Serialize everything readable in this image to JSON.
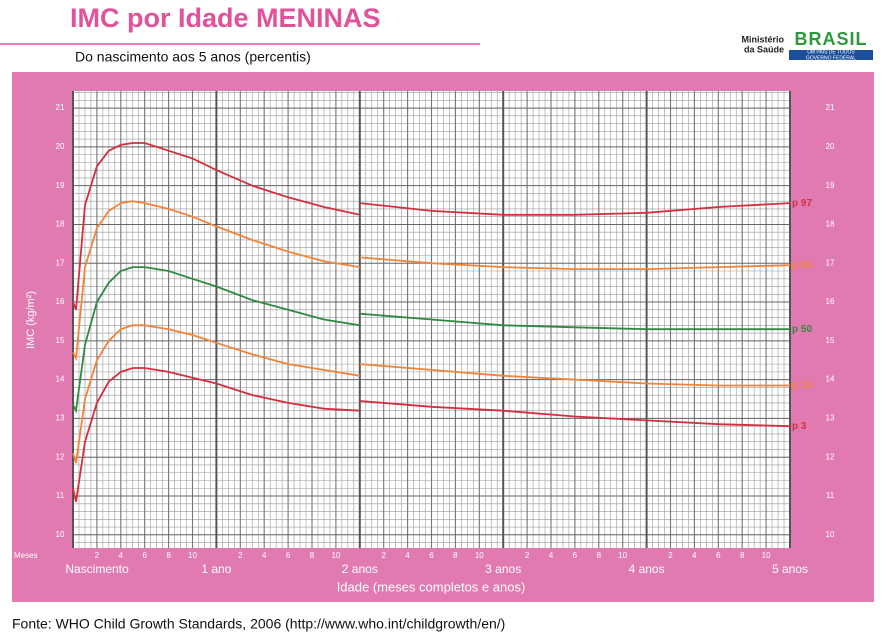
{
  "chart_data": {
    "type": "line",
    "title": "IMC por Idade MENINAS",
    "subtitle": "Do nascimento aos 5 anos (percentis)",
    "logo": {
      "line1": "Ministério",
      "line2": "da Saúde",
      "brand": "BRASIL",
      "tagline1": "UM PAÍS DE TODOS",
      "tagline2": "GOVERNO FEDERAL"
    },
    "x_label": "Idade (meses completos e anos)",
    "y_label": "IMC (kg/m²)",
    "x_unit_label": "Meses",
    "source": "Fonte: WHO Child Growth Standards, 2006 (http://www.who.int/childgrowth/en/)",
    "x": [
      0,
      0.25,
      1,
      2,
      3,
      4,
      5,
      6,
      8,
      10,
      12,
      15,
      18,
      21,
      24,
      24,
      24,
      30,
      36,
      42,
      48,
      54,
      60
    ],
    "series": [
      {
        "name": "p 97",
        "color": "#d2303e",
        "values": [
          16.0,
          15.8,
          18.5,
          19.5,
          19.9,
          20.05,
          20.1,
          20.1,
          19.9,
          19.7,
          19.4,
          19.0,
          18.7,
          18.45,
          18.25,
          null,
          18.55,
          18.35,
          18.25,
          18.25,
          18.3,
          18.45,
          18.55
        ]
      },
      {
        "name": "p 85",
        "color": "#f0843a",
        "values": [
          14.7,
          14.55,
          16.9,
          17.9,
          18.35,
          18.55,
          18.6,
          18.55,
          18.4,
          18.2,
          17.95,
          17.6,
          17.3,
          17.05,
          16.9,
          null,
          17.15,
          17.0,
          16.9,
          16.85,
          16.85,
          16.9,
          16.95
        ]
      },
      {
        "name": "p 50",
        "color": "#2e8b40",
        "values": [
          13.35,
          13.2,
          14.9,
          16.0,
          16.5,
          16.8,
          16.9,
          16.9,
          16.8,
          16.6,
          16.4,
          16.05,
          15.8,
          15.55,
          15.4,
          null,
          15.7,
          15.55,
          15.4,
          15.35,
          15.3,
          15.3,
          15.3
        ]
      },
      {
        "name": "p 15",
        "color": "#f0843a",
        "values": [
          12.1,
          11.85,
          13.5,
          14.5,
          15.0,
          15.3,
          15.4,
          15.4,
          15.3,
          15.15,
          14.95,
          14.65,
          14.4,
          14.25,
          14.1,
          null,
          14.4,
          14.25,
          14.1,
          14.0,
          13.9,
          13.85,
          13.85
        ]
      },
      {
        "name": "p 3",
        "color": "#d2303e",
        "values": [
          11.2,
          10.85,
          12.4,
          13.4,
          13.95,
          14.2,
          14.3,
          14.3,
          14.2,
          14.05,
          13.9,
          13.6,
          13.4,
          13.25,
          13.2,
          null,
          13.45,
          13.3,
          13.2,
          13.05,
          12.95,
          12.85,
          12.8
        ]
      }
    ],
    "xlim": [
      0,
      60
    ],
    "ylim": [
      9.66,
      21.44
    ],
    "xticks": [
      {
        "value": 0,
        "label": "Nascimento"
      },
      {
        "value": 12,
        "label": "1 ano"
      },
      {
        "value": 24,
        "label": "2 anos"
      },
      {
        "value": 36,
        "label": "3 anos"
      },
      {
        "value": 48,
        "label": "4 anos"
      },
      {
        "value": 60,
        "label": "5 anos"
      }
    ],
    "xminorticks": [
      {
        "value": 2,
        "label": "2"
      },
      {
        "value": 4,
        "label": "4"
      },
      {
        "value": 6,
        "label": "6"
      },
      {
        "value": 8,
        "label": "8"
      },
      {
        "value": 10,
        "label": "10"
      },
      {
        "value": 14,
        "label": "2"
      },
      {
        "value": 16,
        "label": "4"
      },
      {
        "value": 18,
        "label": "6"
      },
      {
        "value": 20,
        "label": "8"
      },
      {
        "value": 22,
        "label": "10"
      },
      {
        "value": 26,
        "label": "2"
      },
      {
        "value": 28,
        "label": "4"
      },
      {
        "value": 30,
        "label": "6"
      },
      {
        "value": 32,
        "label": "8"
      },
      {
        "value": 34,
        "label": "10"
      },
      {
        "value": 38,
        "label": "2"
      },
      {
        "value": 40,
        "label": "4"
      },
      {
        "value": 42,
        "label": "6"
      },
      {
        "value": 44,
        "label": "8"
      },
      {
        "value": 46,
        "label": "10"
      },
      {
        "value": 50,
        "label": "2"
      },
      {
        "value": 52,
        "label": "4"
      },
      {
        "value": 54,
        "label": "6"
      },
      {
        "value": 56,
        "label": "8"
      },
      {
        "value": 58,
        "label": "10"
      }
    ],
    "yticks": [
      10,
      11,
      12,
      13,
      14,
      15,
      16,
      17,
      18,
      19,
      20,
      21
    ],
    "grid": true
  }
}
